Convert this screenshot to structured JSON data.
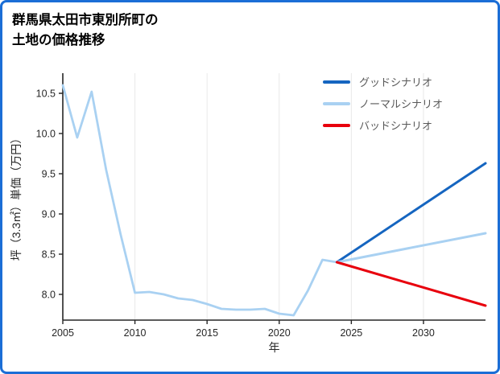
{
  "page": {
    "border_color": "#1b6ed6",
    "background": "#ffffff"
  },
  "title": {
    "line1": "群馬県太田市東別所町の",
    "line2": "土地の価格推移"
  },
  "legend": {
    "items": [
      {
        "id": "good",
        "label": "グッドシナリオ",
        "color": "#1565c0"
      },
      {
        "id": "normal",
        "label": "ノーマルシナリオ",
        "color": "#a9d1f2"
      },
      {
        "id": "bad",
        "label": "バッドシナリオ",
        "color": "#e8000d"
      }
    ]
  },
  "chart_data": {
    "type": "line",
    "title": "群馬県太田市東別所町の土地の価格推移",
    "xlabel": "年",
    "ylabel": "坪（3.3㎡）単価（万円）",
    "xlim": [
      2005,
      2034.3
    ],
    "ylim": [
      7.68,
      10.75
    ],
    "xticks": [
      2005,
      2010,
      2015,
      2020,
      2025,
      2030
    ],
    "xtick_labels": [
      "2005",
      "2010",
      "2015",
      "2020",
      "2025",
      "2030"
    ],
    "yticks": [
      8.0,
      8.5,
      9.0,
      9.5,
      10.0,
      10.5
    ],
    "ytick_labels": [
      "8.0",
      "8.5",
      "9.0",
      "9.5",
      "10.0",
      "10.5"
    ],
    "grid_x": [
      2010,
      2015,
      2020,
      2025,
      2030
    ],
    "grid_on": true,
    "legend_position": "top-right-inside",
    "colors": {
      "grid": "#e8e8e8",
      "axis": "#262626",
      "good": "#1565c0",
      "normal": "#a9d1f2",
      "bad": "#e8000d",
      "historical": "#a9d1f2"
    },
    "series": [
      {
        "id": "historical",
        "color": "#a9d1f2",
        "width": 2.8,
        "points": [
          [
            2005,
            10.6
          ],
          [
            2006,
            9.95
          ],
          [
            2007,
            10.52
          ],
          [
            2008,
            9.55
          ],
          [
            2009,
            8.75
          ],
          [
            2010,
            8.02
          ],
          [
            2011,
            8.03
          ],
          [
            2012,
            8.0
          ],
          [
            2013,
            7.95
          ],
          [
            2014,
            7.93
          ],
          [
            2015,
            7.88
          ],
          [
            2016,
            7.82
          ],
          [
            2017,
            7.81
          ],
          [
            2018,
            7.81
          ],
          [
            2019,
            7.82
          ],
          [
            2020,
            7.76
          ],
          [
            2021,
            7.74
          ],
          [
            2022,
            8.05
          ],
          [
            2023,
            8.43
          ],
          [
            2024,
            8.4
          ]
        ]
      },
      {
        "id": "good",
        "label": "グッドシナリオ",
        "color": "#1565c0",
        "width": 3,
        "points": [
          [
            2024,
            8.4
          ],
          [
            2034.3,
            9.63
          ]
        ]
      },
      {
        "id": "normal",
        "label": "ノーマルシナリオ",
        "color": "#a9d1f2",
        "width": 3,
        "points": [
          [
            2024,
            8.4
          ],
          [
            2034.3,
            8.76
          ]
        ]
      },
      {
        "id": "bad",
        "label": "バッドシナリオ",
        "color": "#e8000d",
        "width": 3,
        "points": [
          [
            2024,
            8.4
          ],
          [
            2034.3,
            7.86
          ]
        ]
      }
    ]
  }
}
